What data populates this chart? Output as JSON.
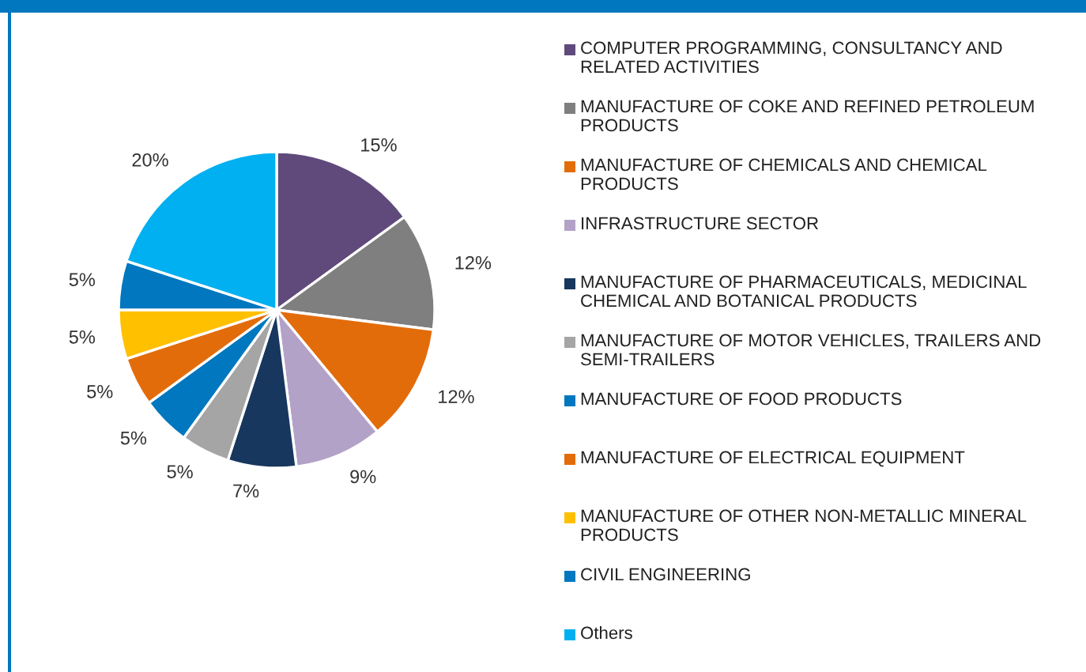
{
  "chart_data": {
    "type": "pie",
    "categories": [
      "COMPUTER PROGRAMMING, CONSULTANCY AND RELATED ACTIVITIES",
      "MANUFACTURE OF COKE AND REFINED PETROLEUM PRODUCTS",
      "MANUFACTURE OF CHEMICALS AND CHEMICAL PRODUCTS",
      "INFRASTRUCTURE SECTOR",
      "MANUFACTURE OF PHARMACEUTICALS, MEDICINAL CHEMICAL AND BOTANICAL PRODUCTS",
      "MANUFACTURE OF MOTOR VEHICLES, TRAILERS AND SEMI-TRAILERS",
      "MANUFACTURE OF FOOD PRODUCTS",
      "MANUFACTURE OF ELECTRICAL EQUIPMENT",
      "MANUFACTURE OF OTHER NON-METALLIC MINERAL PRODUCTS",
      "CIVIL ENGINEERING",
      "Others"
    ],
    "values": [
      15,
      12,
      12,
      9,
      7,
      5,
      5,
      5,
      5,
      5,
      20
    ],
    "value_labels": [
      "15%",
      "12%",
      "12%",
      "9%",
      "7%",
      "5%",
      "5%",
      "5%",
      "5%",
      "5%",
      "20%"
    ],
    "colors": [
      "#604a7b",
      "#7f7f7f",
      "#e36c0a",
      "#b3a2c7",
      "#17375e",
      "#a5a5a5",
      "#0077be",
      "#e36c0a",
      "#ffc000",
      "#0077be",
      "#00b0f0"
    ],
    "legend": "right"
  }
}
